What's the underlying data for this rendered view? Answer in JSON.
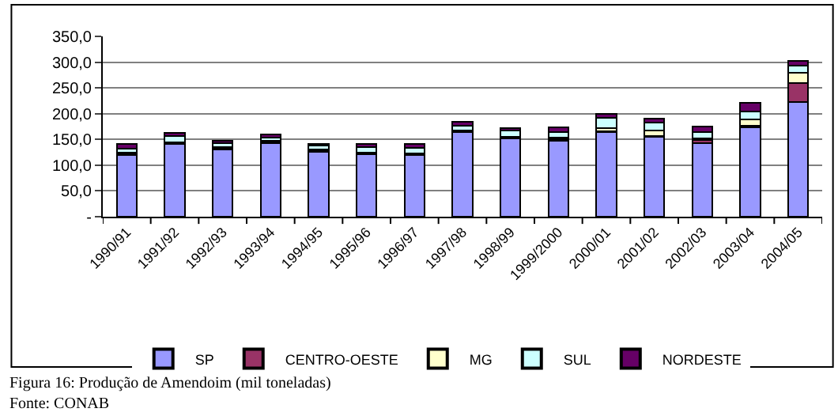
{
  "chart_data": {
    "type": "bar",
    "stacked": true,
    "categories": [
      "1990/91",
      "1991/92",
      "1992/93",
      "1993/94",
      "1994/95",
      "1995/96",
      "1996/97",
      "1997/98",
      "1998/99",
      "1999/2000",
      "2000/01",
      "2001/02",
      "2002/03",
      "2003/04",
      "2004/05"
    ],
    "series": [
      {
        "name": "SP",
        "color": "#9999ff",
        "values": [
          120,
          142,
          130,
          143,
          126,
          121,
          119,
          165,
          152,
          148,
          164,
          155,
          143,
          174,
          223
        ]
      },
      {
        "name": "CENTRO-OESTE",
        "color": "#993366",
        "values": [
          2,
          0,
          3,
          1,
          2,
          2,
          2,
          1,
          1,
          2,
          2,
          1,
          6,
          2,
          37
        ]
      },
      {
        "name": "MG",
        "color": "#ffffcc",
        "values": [
          2,
          2,
          2,
          4,
          2,
          2,
          2,
          2,
          2,
          4,
          6,
          11,
          3,
          13,
          19
        ]
      },
      {
        "name": "SUL",
        "color": "#ccffff",
        "values": [
          8,
          12,
          8,
          6,
          8,
          10,
          10,
          9,
          12,
          10,
          20,
          16,
          12,
          15,
          14
        ]
      },
      {
        "name": "NORDESTE",
        "color": "#660066",
        "values": [
          10,
          7,
          4,
          6,
          4,
          7,
          9,
          7,
          5,
          9,
          7,
          7,
          11,
          17,
          10
        ]
      }
    ],
    "ylim": [
      0,
      350
    ],
    "yticks": [
      {
        "value": 0,
        "label": "-"
      },
      {
        "value": 50,
        "label": "50,0"
      },
      {
        "value": 100,
        "label": "100,0"
      },
      {
        "value": 150,
        "label": "150,0"
      },
      {
        "value": 200,
        "label": "200,0"
      },
      {
        "value": 250,
        "label": "250,0"
      },
      {
        "value": 300,
        "label": "300,0"
      },
      {
        "value": 350,
        "label": "350,0"
      }
    ],
    "grid": "y",
    "legend": "bottom",
    "annotations": [
      "Figura 16: Produção de Amendoim (mil toneladas)",
      "Fonte: CONAB"
    ]
  }
}
